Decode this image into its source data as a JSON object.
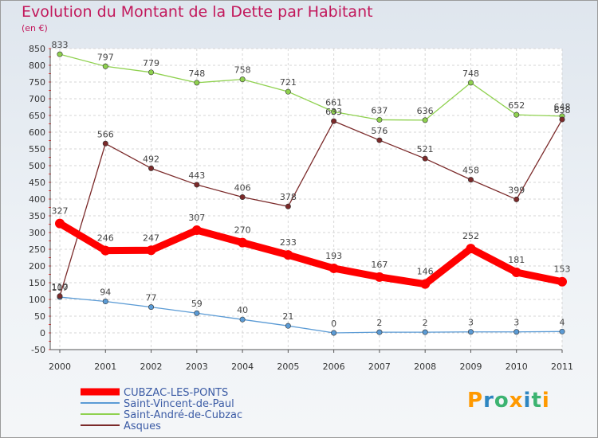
{
  "title": "Evolution du Montant de la Dette par Habitant",
  "unit": "(en €)",
  "logo": "Proxiti",
  "chart_data": {
    "type": "line",
    "title": "Evolution du Montant de la Dette par Habitant",
    "ylabel": "(en €)",
    "x": [
      "2000",
      "2001",
      "2002",
      "2003",
      "2004",
      "2005",
      "2006",
      "2007",
      "2008",
      "2009",
      "2010",
      "2011"
    ],
    "ylim": [
      -50,
      850
    ],
    "yticks": [
      -50,
      0,
      50,
      100,
      150,
      200,
      250,
      300,
      350,
      400,
      450,
      500,
      550,
      600,
      650,
      700,
      750,
      800,
      850
    ],
    "grid": true,
    "legend_position": "bottom-left",
    "series": [
      {
        "name": "CUBZAC-LES-PONTS",
        "color": "#ff0000",
        "values": [
          327,
          246,
          247,
          307,
          270,
          233,
          193,
          167,
          146,
          252,
          181,
          153
        ]
      },
      {
        "name": "Saint-Vincent-de-Paul",
        "color": "#5b9bd5",
        "values": [
          107,
          94,
          77,
          59,
          40,
          21,
          0,
          2,
          2,
          3,
          3,
          4
        ]
      },
      {
        "name": "Saint-André-de-Cubzac",
        "color": "#8fd14f",
        "values": [
          833,
          797,
          779,
          748,
          758,
          721,
          661,
          637,
          636,
          748,
          652,
          648
        ]
      },
      {
        "name": "Asques",
        "color": "#7b2a2a",
        "values": [
          110,
          566,
          492,
          443,
          406,
          378,
          633,
          576,
          521,
          458,
          399,
          638
        ]
      }
    ]
  }
}
